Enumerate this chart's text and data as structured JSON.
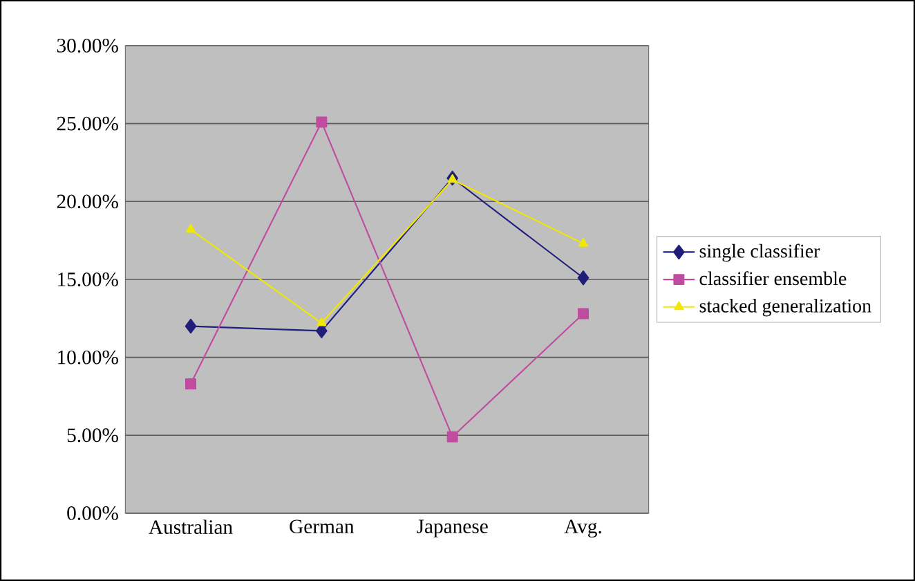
{
  "chart_data": {
    "type": "line",
    "categories": [
      "Australian",
      "German",
      "Japanese",
      "Avg."
    ],
    "series": [
      {
        "name": "single classifier",
        "color": "#1f1f7a",
        "marker": "diamond",
        "values": [
          12.0,
          11.7,
          21.5,
          15.1
        ]
      },
      {
        "name": "classifier ensemble",
        "color": "#c04ca0",
        "marker": "square",
        "values": [
          8.3,
          25.1,
          4.9,
          12.8
        ]
      },
      {
        "name": "stacked generalization",
        "color": "#f0e800",
        "marker": "triangle",
        "values": [
          18.2,
          12.2,
          21.4,
          17.3
        ]
      }
    ],
    "ylim": [
      0,
      30
    ],
    "yticks": [
      {
        "value": 0,
        "label": "0.00%"
      },
      {
        "value": 5,
        "label": "5.00%"
      },
      {
        "value": 10,
        "label": "10.00%"
      },
      {
        "value": 15,
        "label": "15.00%"
      },
      {
        "value": 20,
        "label": "20.00%"
      },
      {
        "value": 25,
        "label": "25.00%"
      },
      {
        "value": 30,
        "label": "30.00%"
      }
    ],
    "grid": "y",
    "legend": "right",
    "line_style": "solid"
  }
}
